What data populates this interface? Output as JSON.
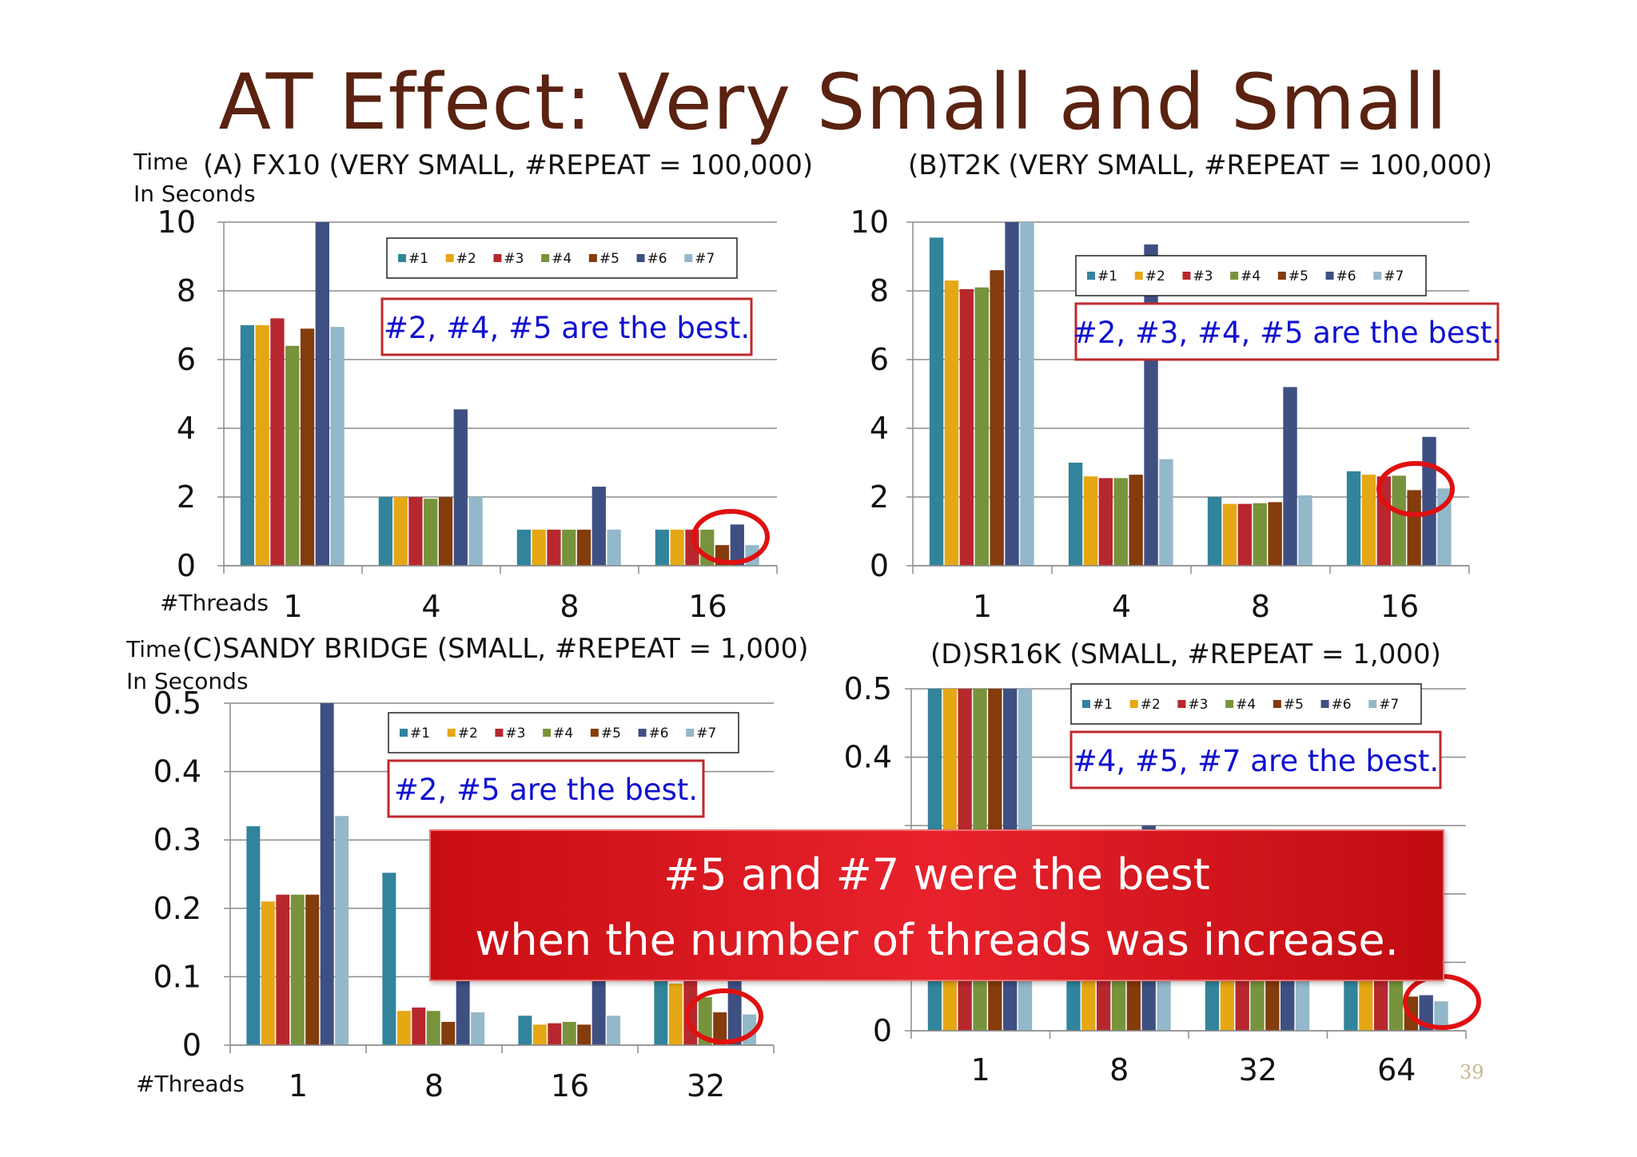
{
  "slide": {
    "title": "AT Effect: Very Small and Small",
    "callout_line1": "#5 and #7 were the best",
    "callout_line2": "when the number of threads was increase.",
    "page_number": "39"
  },
  "series_colors": [
    "#31849b",
    "#e6a715",
    "#b7282e",
    "#77933c",
    "#843c0c",
    "#3e4f82",
    "#93b8c9"
  ],
  "highlight_color": "#e01010",
  "chart_data": [
    {
      "type": "bar",
      "title": "(A) FX10 (VERY SMALL, #REPEAT = 100,000)",
      "ylabel": "Time",
      "ylabel2": "In Seconds",
      "xlabel": "#Threads",
      "ylim": [
        0,
        10
      ],
      "yticks": [
        "0",
        "2",
        "4",
        "6",
        "8",
        "10"
      ],
      "categories": [
        "1",
        "4",
        "8",
        "16"
      ],
      "legend": [
        "#1",
        "#2",
        "#3",
        "#4",
        "#5",
        "#6",
        "#7"
      ],
      "series": [
        {
          "name": "#1",
          "values": [
            7.0,
            2.0,
            1.05,
            1.05
          ]
        },
        {
          "name": "#2",
          "values": [
            7.0,
            2.0,
            1.05,
            1.05
          ]
        },
        {
          "name": "#3",
          "values": [
            7.2,
            2.0,
            1.05,
            1.05
          ]
        },
        {
          "name": "#4",
          "values": [
            6.4,
            1.95,
            1.05,
            1.05
          ]
        },
        {
          "name": "#5",
          "values": [
            6.9,
            2.0,
            1.05,
            0.6
          ]
        },
        {
          "name": "#6",
          "values": [
            10.0,
            4.55,
            2.3,
            1.2
          ]
        },
        {
          "name": "#7",
          "values": [
            6.95,
            2.0,
            1.05,
            0.6
          ]
        }
      ],
      "annotation": "#2, #4, #5 are the best.",
      "highlight_category": 3
    },
    {
      "type": "bar",
      "title": "(B)T2K (VERY SMALL, #REPEAT = 100,000)",
      "ylim": [
        0,
        10
      ],
      "yticks": [
        "0",
        "2",
        "4",
        "6",
        "8",
        "10"
      ],
      "categories": [
        "1",
        "4",
        "8",
        "16"
      ],
      "legend": [
        "#1",
        "#2",
        "#3",
        "#4",
        "#5",
        "#6",
        "#7"
      ],
      "series": [
        {
          "name": "#1",
          "values": [
            9.55,
            3.0,
            2.0,
            2.75
          ]
        },
        {
          "name": "#2",
          "values": [
            8.3,
            2.6,
            1.8,
            2.65
          ]
        },
        {
          "name": "#3",
          "values": [
            8.05,
            2.55,
            1.8,
            2.6
          ]
        },
        {
          "name": "#4",
          "values": [
            8.1,
            2.55,
            1.82,
            2.62
          ]
        },
        {
          "name": "#5",
          "values": [
            8.6,
            2.65,
            1.85,
            2.2
          ]
        },
        {
          "name": "#6",
          "values": [
            10.0,
            9.35,
            5.2,
            3.75
          ]
        },
        {
          "name": "#7",
          "values": [
            10.0,
            3.1,
            2.05,
            2.25
          ]
        }
      ],
      "annotation": "#2, #3, #4, #5 are the best.",
      "highlight_category": 3
    },
    {
      "type": "bar",
      "title": "(C)SANDY BRIDGE (SMALL, #REPEAT = 1,000)",
      "ylabel": "Time",
      "ylabel2": "In Seconds",
      "xlabel": "#Threads",
      "ylim": [
        0,
        0.5
      ],
      "yticks": [
        "0",
        "0.1",
        "0.2",
        "0.3",
        "0.4",
        "0.5"
      ],
      "categories": [
        "1",
        "8",
        "16",
        "32"
      ],
      "legend": [
        "#1",
        "#2",
        "#3",
        "#4",
        "#5",
        "#6",
        "#7"
      ],
      "series": [
        {
          "name": "#1",
          "values": [
            0.32,
            0.252,
            0.043,
            0.1
          ]
        },
        {
          "name": "#2",
          "values": [
            0.21,
            0.05,
            0.03,
            0.09
          ]
        },
        {
          "name": "#3",
          "values": [
            0.22,
            0.055,
            0.032,
            0.1
          ]
        },
        {
          "name": "#4",
          "values": [
            0.22,
            0.05,
            0.034,
            0.07
          ]
        },
        {
          "name": "#5",
          "values": [
            0.22,
            0.034,
            0.03,
            0.048
          ]
        },
        {
          "name": "#6",
          "values": [
            0.5,
            0.1,
            0.1,
            0.1
          ]
        },
        {
          "name": "#7",
          "values": [
            0.335,
            0.048,
            0.043,
            0.045
          ]
        }
      ],
      "annotation": "#2, #5 are the best.",
      "highlight_category": 3
    },
    {
      "type": "bar",
      "title": "(D)SR16K (SMALL, #REPEAT = 1,000)",
      "ylim": [
        0,
        0.5
      ],
      "yticks": [
        "0",
        "0.1",
        "0.2",
        "0.3",
        "0.4",
        "0.5"
      ],
      "ytick_visible": [
        "0",
        "0.4",
        "0.5"
      ],
      "categories": [
        "1",
        "8",
        "32",
        "64"
      ],
      "legend": [
        "#1",
        "#2",
        "#3",
        "#4",
        "#5",
        "#6",
        "#7"
      ],
      "series": [
        {
          "name": "#1",
          "values": [
            0.5,
            0.08,
            0.08,
            0.08
          ]
        },
        {
          "name": "#2",
          "values": [
            0.5,
            0.08,
            0.08,
            0.08
          ]
        },
        {
          "name": "#3",
          "values": [
            0.5,
            0.08,
            0.08,
            0.08
          ]
        },
        {
          "name": "#4",
          "values": [
            0.5,
            0.08,
            0.08,
            0.08
          ]
        },
        {
          "name": "#5",
          "values": [
            0.5,
            0.08,
            0.08,
            0.05
          ]
        },
        {
          "name": "#6",
          "values": [
            0.5,
            0.3,
            0.08,
            0.052
          ]
        },
        {
          "name": "#7",
          "values": [
            0.5,
            0.08,
            0.08,
            0.043
          ]
        }
      ],
      "annotation": "#4, #5, #7 are the best.",
      "highlight_category": 3
    }
  ]
}
